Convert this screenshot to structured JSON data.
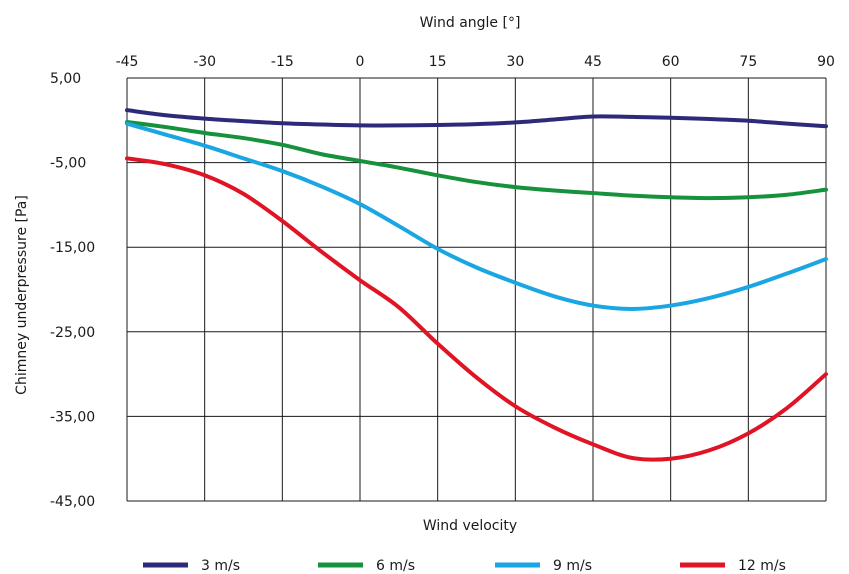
{
  "chart_data": {
    "type": "line",
    "x_top_label": "Wind angle [°]",
    "xlabel": "Wind velocity",
    "ylabel": "Chimney underpressure [Pa]",
    "x_ticks": [
      "-45",
      "-30",
      "-15",
      "0",
      "15",
      "30",
      "45",
      "60",
      "75",
      "90"
    ],
    "y_ticks": [
      "5,00",
      "-5,00",
      "-15,00",
      "-25,00",
      "-35,00",
      "-45,00"
    ],
    "xlim": [
      -45,
      90
    ],
    "ylim": [
      -45,
      5
    ],
    "grid": true,
    "legend_position": "bottom",
    "x": [
      -45,
      -37.5,
      -30,
      -22.5,
      -15,
      -7.5,
      0,
      7.5,
      15,
      22.5,
      30,
      37.5,
      45,
      52.5,
      60,
      67.5,
      75,
      82.5,
      90
    ],
    "series": [
      {
        "name": "3 m/s",
        "color": "#2e2a7a",
        "values": [
          1.2,
          0.6,
          0.2,
          -0.1,
          -0.35,
          -0.5,
          -0.6,
          -0.6,
          -0.55,
          -0.45,
          -0.25,
          0.1,
          0.45,
          0.4,
          0.3,
          0.15,
          -0.05,
          -0.4,
          -0.7
        ]
      },
      {
        "name": "6 m/s",
        "color": "#16913c",
        "values": [
          -0.2,
          -0.8,
          -1.5,
          -2.1,
          -2.9,
          -4.0,
          -4.8,
          -5.6,
          -6.5,
          -7.3,
          -7.9,
          -8.3,
          -8.6,
          -8.9,
          -9.1,
          -9.2,
          -9.1,
          -8.8,
          -8.2
        ]
      },
      {
        "name": "9 m/s",
        "color": "#1aa6e2",
        "values": [
          -0.4,
          -1.7,
          -3.0,
          -4.5,
          -6.0,
          -7.8,
          -9.9,
          -12.5,
          -15.2,
          -17.4,
          -19.2,
          -20.8,
          -21.9,
          -22.3,
          -21.9,
          -21.0,
          -19.7,
          -18.1,
          -16.4
        ]
      },
      {
        "name": "12 m/s",
        "color": "#e01424",
        "values": [
          -4.5,
          -5.2,
          -6.5,
          -8.7,
          -11.9,
          -15.5,
          -18.9,
          -22.1,
          -26.4,
          -30.4,
          -33.8,
          -36.3,
          -38.3,
          -39.9,
          -40.0,
          -39.0,
          -37.0,
          -34.0,
          -30.0
        ]
      }
    ]
  }
}
